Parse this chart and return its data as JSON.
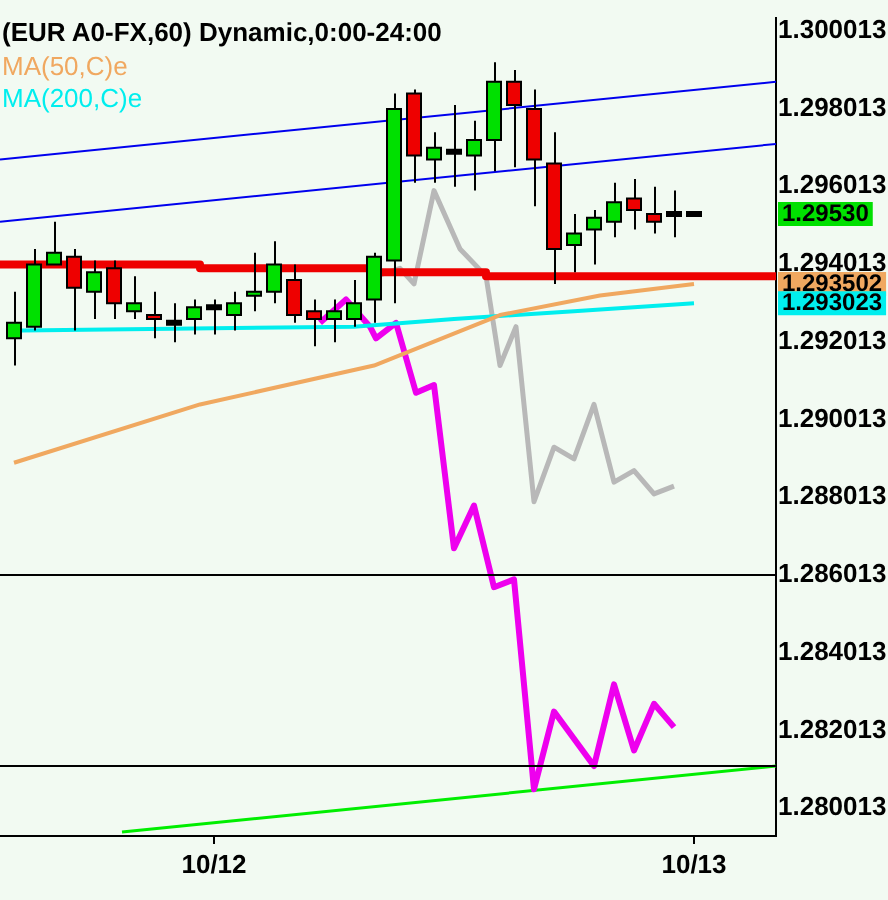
{
  "chart_data": {
    "type": "candlestick",
    "title": "(EUR A0-FX,60) Dynamic,0:00-24:00",
    "x": [
      "--10-11T14:00",
      "--10-11T15:00",
      "--10-11T16:00",
      "--10-11T17:00",
      "--10-11T18:00",
      "--10-11T19:00",
      "--10-11T20:00",
      "--10-11T21:00",
      "--10-11T22:00",
      "--10-11T23:00",
      "--10-12T00:00",
      "--10-12T01:00",
      "--10-12T02:00",
      "--10-12T03:00",
      "--10-12T04:00",
      "--10-12T05:00",
      "--10-12T06:00",
      "--10-12T07:00",
      "--10-12T08:00",
      "--10-12T09:00",
      "--10-12T10:00",
      "--10-12T11:00",
      "--10-12T12:00",
      "--10-12T13:00",
      "--10-12T14:00",
      "--10-12T15:00",
      "--10-12T16:00",
      "--10-12T17:00",
      "--10-12T18:00",
      "--10-12T19:00",
      "--10-12T20:00",
      "--10-12T21:00",
      "--10-12T22:00",
      "--10-12T23:00",
      "--10-13T00:00"
    ],
    "ohlc": [
      [
        1.2921,
        1.2933,
        1.2914,
        1.2925
      ],
      [
        1.2924,
        1.2944,
        1.2923,
        1.294
      ],
      [
        1.294,
        1.2951,
        1.294,
        1.2943
      ],
      [
        1.2942,
        1.2944,
        1.2923,
        1.2934
      ],
      [
        1.2933,
        1.2941,
        1.2926,
        1.2938
      ],
      [
        1.2939,
        1.2941,
        1.2926,
        1.293
      ],
      [
        1.2928,
        1.2937,
        1.2926,
        1.293
      ],
      [
        1.2927,
        1.2933,
        1.2921,
        1.2926
      ],
      [
        1.2925,
        1.293,
        1.292,
        1.2925
      ],
      [
        1.2926,
        1.2931,
        1.2922,
        1.2929
      ],
      [
        1.2929,
        1.2931,
        1.2922,
        1.2929
      ],
      [
        1.2927,
        1.2933,
        1.2923,
        1.293
      ],
      [
        1.2932,
        1.2943,
        1.2928,
        1.2933
      ],
      [
        1.2933,
        1.2946,
        1.293,
        1.294
      ],
      [
        1.2936,
        1.294,
        1.2925,
        1.2927
      ],
      [
        1.2928,
        1.2931,
        1.2919,
        1.2926
      ],
      [
        1.2926,
        1.2931,
        1.292,
        1.2928
      ],
      [
        1.2926,
        1.2936,
        1.2924,
        1.293
      ],
      [
        1.2931,
        1.2943,
        1.2925,
        1.2942
      ],
      [
        1.2941,
        1.2984,
        1.293,
        1.298
      ],
      [
        1.2984,
        1.2985,
        1.2961,
        1.2968
      ],
      [
        1.2967,
        1.2974,
        1.2961,
        1.297
      ],
      [
        1.2969,
        1.2981,
        1.296,
        1.2969
      ],
      [
        1.2968,
        1.2977,
        1.2959,
        1.2972
      ],
      [
        1.2972,
        1.2992,
        1.2964,
        1.2987
      ],
      [
        1.2987,
        1.299,
        1.2965,
        1.2981
      ],
      [
        1.298,
        1.2985,
        1.2955,
        1.2967
      ],
      [
        1.2966,
        1.2974,
        1.2935,
        1.2944
      ],
      [
        1.2945,
        1.2953,
        1.2938,
        1.2948
      ],
      [
        1.2949,
        1.2954,
        1.294,
        1.2952
      ],
      [
        1.2951,
        1.2961,
        1.2947,
        1.2956
      ],
      [
        1.2957,
        1.2962,
        1.2949,
        1.2954
      ],
      [
        1.2953,
        1.296,
        1.2948,
        1.2951
      ],
      [
        1.2953,
        1.2959,
        1.2947,
        1.2953
      ],
      [
        1.2953,
        1.2953,
        1.2953,
        1.2953
      ]
    ],
    "colors": [
      "#00e000",
      "#00e000",
      "#00e000",
      "#ee0000",
      "#00e000",
      "#ee0000",
      "#00e000",
      "#ee0000",
      "#000000",
      "#00e000",
      "#000000",
      "#00e000",
      "#00e000",
      "#00e000",
      "#ee0000",
      "#ee0000",
      "#00e000",
      "#00e000",
      "#00e000",
      "#00e000",
      "#ee0000",
      "#00e000",
      "#000000",
      "#00e000",
      "#00e000",
      "#ee0000",
      "#ee0000",
      "#ee0000",
      "#00e000",
      "#00e000",
      "#00e000",
      "#ee0000",
      "#ee0000",
      "#000000",
      "#000000"
    ],
    "series": [
      {
        "type": "step",
        "color": "#ee0000",
        "x": [
          "--10-11T13:18",
          "--10-11T23:18",
          "--10-12T08:00",
          "--10-12T13:36",
          "--10-12T18:36",
          "--10-13T04:06"
        ],
        "values": [
          1.2941,
          1.294,
          1.2939,
          1.2938,
          1.2937,
          1.2937
        ]
      },
      {
        "type": "line",
        "color": "#0000ee",
        "x": [
          "--10-11T13:18",
          "--10-13T04:06"
        ],
        "values": [
          1.2967,
          1.2987
        ]
      },
      {
        "type": "line",
        "color": "#0000ee",
        "x": [
          "--10-11T13:18",
          "--10-13T04:06"
        ],
        "values": [
          1.2951,
          1.2971
        ]
      },
      {
        "type": "line",
        "name": "MA(50,C)e",
        "color": "#f0a860",
        "x": [
          "--10-11T14:00",
          "--10-11T23:18",
          "--10-12T08:00",
          "--10-12T14:18",
          "--10-12T19:18",
          "--10-13T00:00"
        ],
        "values": [
          1.2889,
          1.2904,
          1.2914,
          1.2927,
          1.2932,
          1.2935
        ]
      },
      {
        "type": "line",
        "name": "MA(200,C)e",
        "color": "#00eeee",
        "x": [
          "--10-11T14:24",
          "--10-12T07:00",
          "--10-12T12:00",
          "--10-12T18:00",
          "--10-13T00:00"
        ],
        "values": [
          1.2923,
          1.2924,
          1.2926,
          1.2928,
          1.293
        ]
      },
      {
        "type": "line",
        "color": "#b8b8b8",
        "x": [
          "--10-12T08:06",
          "--10-12T09:18",
          "--10-12T10:00",
          "--10-12T11:00",
          "--10-12T12:18",
          "--10-12T13:36",
          "--10-12T14:18",
          "--10-12T15:06",
          "--10-12T16:00",
          "--10-12T17:00",
          "--10-12T18:00",
          "--10-12T19:00",
          "--10-12T20:00",
          "--10-12T21:00",
          "--10-12T22:00",
          "--10-12T23:00"
        ],
        "values": [
          1.2937,
          1.2939,
          1.2935,
          1.2959,
          1.2944,
          1.2937,
          1.2914,
          1.2924,
          1.2879,
          1.2893,
          1.289,
          1.2904,
          1.2884,
          1.2887,
          1.2881,
          1.2883
        ]
      },
      {
        "type": "line",
        "color": "#ee00ee",
        "x": [
          "--10-12T05:18",
          "--10-12T06:36",
          "--10-12T07:48",
          "--10-12T08:06",
          "--10-12T09:06",
          "--10-12T10:06",
          "--10-12T11:00",
          "--10-12T12:00",
          "--10-12T13:00",
          "--10-12T14:00",
          "--10-12T15:00",
          "--10-12T16:00",
          "--10-12T17:00",
          "--10-12T18:00",
          "--10-12T19:00",
          "--10-12T20:00",
          "--10-12T21:00",
          "--10-12T22:00",
          "--10-12T23:00"
        ],
        "values": [
          1.2925,
          1.2931,
          1.2924,
          1.2921,
          1.2925,
          1.2907,
          1.2909,
          1.2867,
          1.2878,
          1.2857,
          1.2859,
          1.2805,
          1.2825,
          1.2818,
          1.2811,
          1.2832,
          1.2815,
          1.2827,
          1.2821
        ]
      },
      {
        "type": "line",
        "color": "#00ee00",
        "x": [
          "--10-11T19:24",
          "--10-13T04:06"
        ],
        "values": [
          1.2794,
          1.2811
        ]
      }
    ],
    "ref_lines": [
      {
        "axis": "y",
        "value": 1.286013,
        "color": "#000000"
      },
      {
        "axis": "y",
        "value": 1.2811,
        "color": "#000000"
      }
    ],
    "annotations": [
      "1.29530",
      "1.293502",
      "1.293023"
    ],
    "xlim": [
      "--10-11T13:18",
      "--10-13T04:06"
    ],
    "xticks": [
      {
        "value": "--10-12",
        "label": "10/12"
      },
      {
        "value": "--10-13",
        "label": "10/13"
      }
    ],
    "ylim": [
      1.2793,
      1.30035
    ],
    "yticks": [
      1.280013,
      1.282013,
      1.284013,
      1.286013,
      1.288013,
      1.290013,
      1.292013,
      1.294013,
      1.296013,
      1.298013,
      1.300013
    ],
    "legend": "top left",
    "marker": "none"
  }
}
